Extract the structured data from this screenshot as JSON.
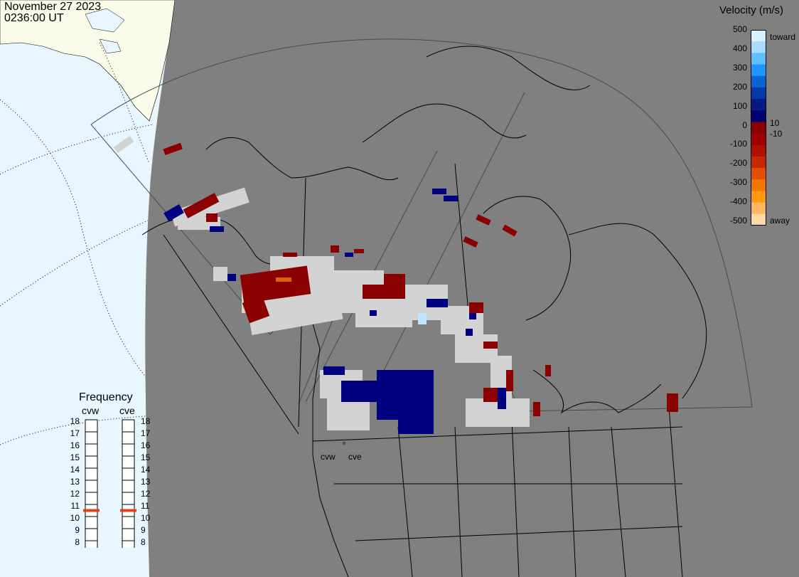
{
  "header": {
    "date": "November 27 2023",
    "time": "0236:00 UT"
  },
  "colorbar": {
    "title": "Velocity (m/s)",
    "ticks": [
      "500",
      "400",
      "300",
      "200",
      "100",
      "0",
      "-100",
      "-200",
      "-300",
      "-400",
      "-500"
    ],
    "right_labels": {
      "top": "toward",
      "pos": "10",
      "neg": "-10",
      "bottom": "away"
    },
    "colors": [
      "#d8f0ff",
      "#a8dcff",
      "#5ec0ff",
      "#1e96ff",
      "#0a64d2",
      "#0838a8",
      "#061a80",
      "#000070",
      "#8a0000",
      "#a00000",
      "#b01000",
      "#c82800",
      "#e05000",
      "#f07800",
      "#ff9a10",
      "#ffb860",
      "#ffd8a8"
    ]
  },
  "frequency": {
    "title": "Frequency",
    "radars": [
      {
        "name": "cvw",
        "value": 11
      },
      {
        "name": "cve",
        "value": 11
      }
    ],
    "scale": [
      "18",
      "17",
      "16",
      "15",
      "14",
      "13",
      "12",
      "11",
      "10",
      "9",
      "8"
    ]
  },
  "map_labels": {
    "radar1": "cvw",
    "radar2": "cve"
  }
}
